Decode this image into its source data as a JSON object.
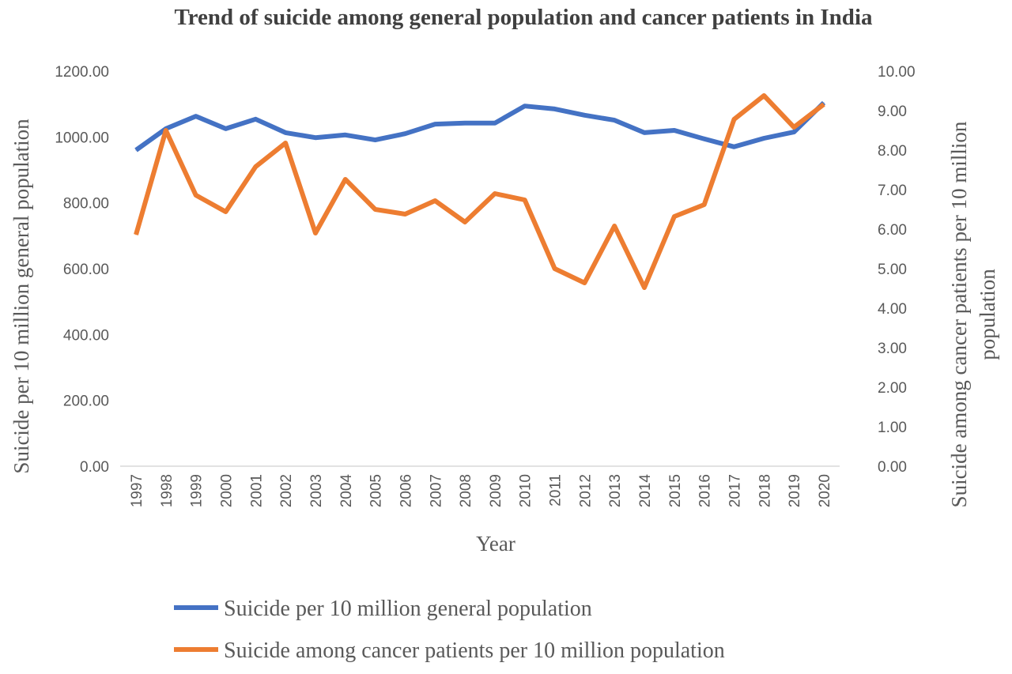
{
  "chart_data": {
    "type": "line",
    "title": "Trend of  suicide among general population and cancer patients in India",
    "xlabel": "Year",
    "ylabel": "Suicide per 10 million general population",
    "y2label_lines": [
      "Suicide among cancer patients per 10 million",
      "population"
    ],
    "categories": [
      "1997",
      "1998",
      "1999",
      "2000",
      "2001",
      "2002",
      "2003",
      "2004",
      "2005",
      "2006",
      "2007",
      "2008",
      "2009",
      "2010",
      "2011",
      "2012",
      "2013",
      "2014",
      "2015",
      "2016",
      "2017",
      "2018",
      "2019",
      "2020"
    ],
    "ylim": [
      0,
      1200
    ],
    "y2lim": [
      0,
      10
    ],
    "yticks": [
      "0.00",
      "200.00",
      "400.00",
      "600.00",
      "800.00",
      "1000.00",
      "1200.00"
    ],
    "y2ticks": [
      "0.00",
      "1.00",
      "2.00",
      "3.00",
      "4.00",
      "5.00",
      "6.00",
      "7.00",
      "8.00",
      "9.00",
      "10.00"
    ],
    "grid": false,
    "legend_position": "bottom",
    "series": [
      {
        "name": "Suicide per 10 million general population",
        "axis": "left",
        "color": "#4472C4",
        "values": [
          960,
          1025,
          1063,
          1025,
          1054,
          1013,
          998,
          1006,
          991,
          1010,
          1039,
          1042,
          1042,
          1094,
          1085,
          1066,
          1051,
          1013,
          1020,
          994,
          970,
          996,
          1015,
          1104
        ]
      },
      {
        "name": "Suicide among cancer patients per 10 million population",
        "axis": "right",
        "color": "#ED7D31",
        "values": [
          5.86,
          8.5,
          6.86,
          6.44,
          7.58,
          8.18,
          5.9,
          7.26,
          6.5,
          6.38,
          6.72,
          6.18,
          6.9,
          6.74,
          5.0,
          4.64,
          6.08,
          4.52,
          6.32,
          6.62,
          8.78,
          9.38,
          8.58,
          9.16
        ]
      }
    ]
  }
}
